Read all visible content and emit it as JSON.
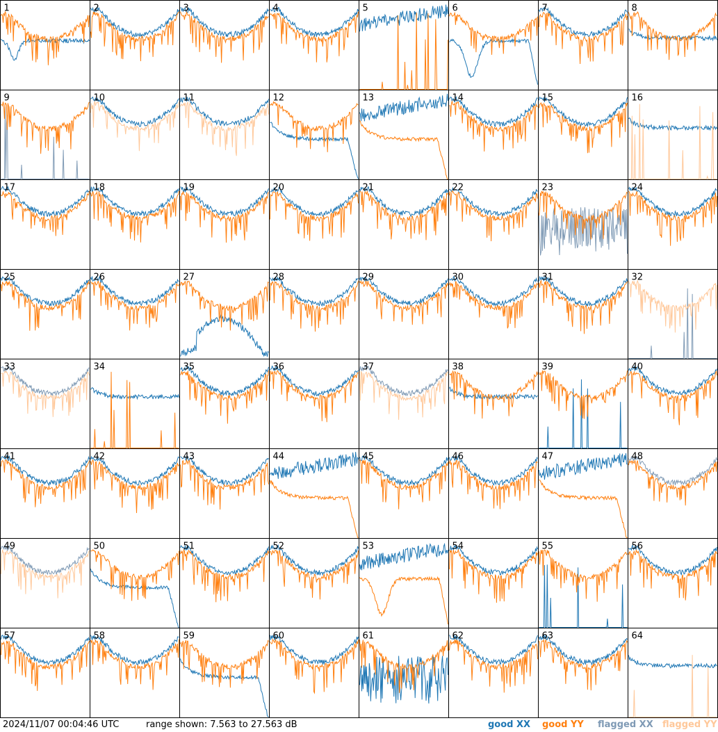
{
  "footer": {
    "timestamp": "2024/11/07 00:04:46 UTC",
    "range": "range shown: 7.563 to 27.563 dB",
    "legend": [
      {
        "label": "good XX",
        "color": "#1f77b4"
      },
      {
        "label": "good YY",
        "color": "#ff7f0e"
      },
      {
        "label": "flagged XX",
        "color": "#7f9ab5"
      },
      {
        "label": "flagged YY",
        "color": "#ffc89a"
      }
    ]
  },
  "chart_data": {
    "type": "line",
    "ylim": [
      7.563,
      27.563
    ],
    "grid": "8x8",
    "panels": [
      {
        "id": "1",
        "xx": "good",
        "yy": "good",
        "xx_shape": "dip_flat"
      },
      {
        "id": "2",
        "xx": "good",
        "yy": "good",
        "xx_shape": "normal"
      },
      {
        "id": "3",
        "xx": "good",
        "yy": "good",
        "xx_shape": "normal"
      },
      {
        "id": "4",
        "xx": "good",
        "yy": "good",
        "xx_shape": "normal"
      },
      {
        "id": "5",
        "xx": "good",
        "yy": "good",
        "xx_shape": "high_noisy",
        "yy_shape": "spikes_bottom"
      },
      {
        "id": "6",
        "xx": "good",
        "yy": "good",
        "xx_shape": "deep_dip_drop"
      },
      {
        "id": "7",
        "xx": "good",
        "yy": "good",
        "xx_shape": "normal"
      },
      {
        "id": "8",
        "xx": "good",
        "yy": "good",
        "xx_shape": "flat_high"
      },
      {
        "id": "9",
        "xx": "flagged",
        "yy": "good",
        "xx_shape": "spikes_bottom"
      },
      {
        "id": "10",
        "xx": "good",
        "yy": "flagged",
        "xx_shape": "normal"
      },
      {
        "id": "11",
        "xx": "good",
        "yy": "flagged",
        "xx_shape": "normal"
      },
      {
        "id": "12",
        "xx": "good",
        "yy": "good",
        "xx_shape": "flat_drop"
      },
      {
        "id": "13",
        "xx": "good",
        "yy": "good",
        "xx_shape": "high_noisy",
        "yy_shape": "flat_drop"
      },
      {
        "id": "14",
        "xx": "good",
        "yy": "good",
        "xx_shape": "normal"
      },
      {
        "id": "15",
        "xx": "good",
        "yy": "good",
        "xx_shape": "normal"
      },
      {
        "id": "16",
        "xx": "good",
        "yy": "flagged",
        "xx_shape": "flat_high",
        "yy_shape": "spikes_bottom"
      },
      {
        "id": "17",
        "xx": "good",
        "yy": "good",
        "xx_shape": "normal"
      },
      {
        "id": "18",
        "xx": "good",
        "yy": "good",
        "xx_shape": "normal"
      },
      {
        "id": "19",
        "xx": "good",
        "yy": "good",
        "xx_shape": "normal"
      },
      {
        "id": "20",
        "xx": "good",
        "yy": "good",
        "xx_shape": "normal"
      },
      {
        "id": "21",
        "xx": "good",
        "yy": "good",
        "xx_shape": "normal"
      },
      {
        "id": "22",
        "xx": "good",
        "yy": "good",
        "xx_shape": "normal"
      },
      {
        "id": "23",
        "xx": "flagged",
        "yy": "good",
        "xx_shape": "noisy_low"
      },
      {
        "id": "24",
        "xx": "good",
        "yy": "good",
        "xx_shape": "normal"
      },
      {
        "id": "25",
        "xx": "good",
        "yy": "good",
        "xx_shape": "normal"
      },
      {
        "id": "26",
        "xx": "good",
        "yy": "good",
        "xx_shape": "normal"
      },
      {
        "id": "27",
        "xx": "good",
        "yy": "good",
        "xx_shape": "arch_low"
      },
      {
        "id": "28",
        "xx": "good",
        "yy": "good",
        "xx_shape": "normal"
      },
      {
        "id": "29",
        "xx": "good",
        "yy": "good",
        "xx_shape": "normal"
      },
      {
        "id": "30",
        "xx": "good",
        "yy": "good",
        "xx_shape": "normal"
      },
      {
        "id": "31",
        "xx": "good",
        "yy": "good",
        "xx_shape": "normal"
      },
      {
        "id": "32",
        "xx": "flagged",
        "yy": "flagged",
        "xx_shape": "spikes_bottom"
      },
      {
        "id": "33",
        "xx": "flagged",
        "yy": "flagged",
        "xx_shape": "normal"
      },
      {
        "id": "34",
        "xx": "good",
        "yy": "good",
        "xx_shape": "flat_high",
        "yy_shape": "spikes_bottom"
      },
      {
        "id": "35",
        "xx": "good",
        "yy": "good",
        "xx_shape": "normal"
      },
      {
        "id": "36",
        "xx": "good",
        "yy": "good",
        "xx_shape": "normal"
      },
      {
        "id": "37",
        "xx": "flagged",
        "yy": "flagged",
        "xx_shape": "normal"
      },
      {
        "id": "38",
        "xx": "good",
        "yy": "good",
        "xx_shape": "flat_high"
      },
      {
        "id": "39",
        "xx": "good",
        "yy": "good",
        "xx_shape": "spikes_bottom"
      },
      {
        "id": "40",
        "xx": "good",
        "yy": "good",
        "xx_shape": "normal"
      },
      {
        "id": "41",
        "xx": "good",
        "yy": "good",
        "xx_shape": "normal"
      },
      {
        "id": "42",
        "xx": "good",
        "yy": "good",
        "xx_shape": "normal"
      },
      {
        "id": "43",
        "xx": "good",
        "yy": "good",
        "xx_shape": "normal"
      },
      {
        "id": "44",
        "xx": "good",
        "yy": "good",
        "xx_shape": "high_noisy",
        "yy_shape": "flat_drop"
      },
      {
        "id": "45",
        "xx": "good",
        "yy": "good",
        "xx_shape": "normal"
      },
      {
        "id": "46",
        "xx": "good",
        "yy": "good",
        "xx_shape": "normal"
      },
      {
        "id": "47",
        "xx": "good",
        "yy": "good",
        "xx_shape": "high_noisy",
        "yy_shape": "flat_drop"
      },
      {
        "id": "48",
        "xx": "flagged",
        "yy": "good",
        "xx_shape": "normal"
      },
      {
        "id": "49",
        "xx": "flagged",
        "yy": "flagged",
        "xx_shape": "normal"
      },
      {
        "id": "50",
        "xx": "good",
        "yy": "good",
        "xx_shape": "flat_drop"
      },
      {
        "id": "51",
        "xx": "good",
        "yy": "good",
        "xx_shape": "normal"
      },
      {
        "id": "52",
        "xx": "good",
        "yy": "good",
        "xx_shape": "normal"
      },
      {
        "id": "53",
        "xx": "good",
        "yy": "good",
        "xx_shape": "high_noisy",
        "yy_shape": "deep_dip_drop"
      },
      {
        "id": "54",
        "xx": "good",
        "yy": "good",
        "xx_shape": "normal"
      },
      {
        "id": "55",
        "xx": "good",
        "yy": "good",
        "xx_shape": "spikes_bottom"
      },
      {
        "id": "56",
        "xx": "good",
        "yy": "good",
        "xx_shape": "normal"
      },
      {
        "id": "57",
        "xx": "good",
        "yy": "good",
        "xx_shape": "normal"
      },
      {
        "id": "58",
        "xx": "good",
        "yy": "good",
        "xx_shape": "normal"
      },
      {
        "id": "59",
        "xx": "good",
        "yy": "good",
        "xx_shape": "flat_drop"
      },
      {
        "id": "60",
        "xx": "good",
        "yy": "good",
        "xx_shape": "normal"
      },
      {
        "id": "61",
        "xx": "good",
        "yy": "good",
        "xx_shape": "noisy_low"
      },
      {
        "id": "62",
        "xx": "good",
        "yy": "good",
        "xx_shape": "normal"
      },
      {
        "id": "63",
        "xx": "good",
        "yy": "good",
        "xx_shape": "normal"
      },
      {
        "id": "64",
        "xx": "good",
        "yy": "flagged",
        "xx_shape": "flat_high",
        "yy_shape": "spikes_bottom"
      }
    ]
  }
}
